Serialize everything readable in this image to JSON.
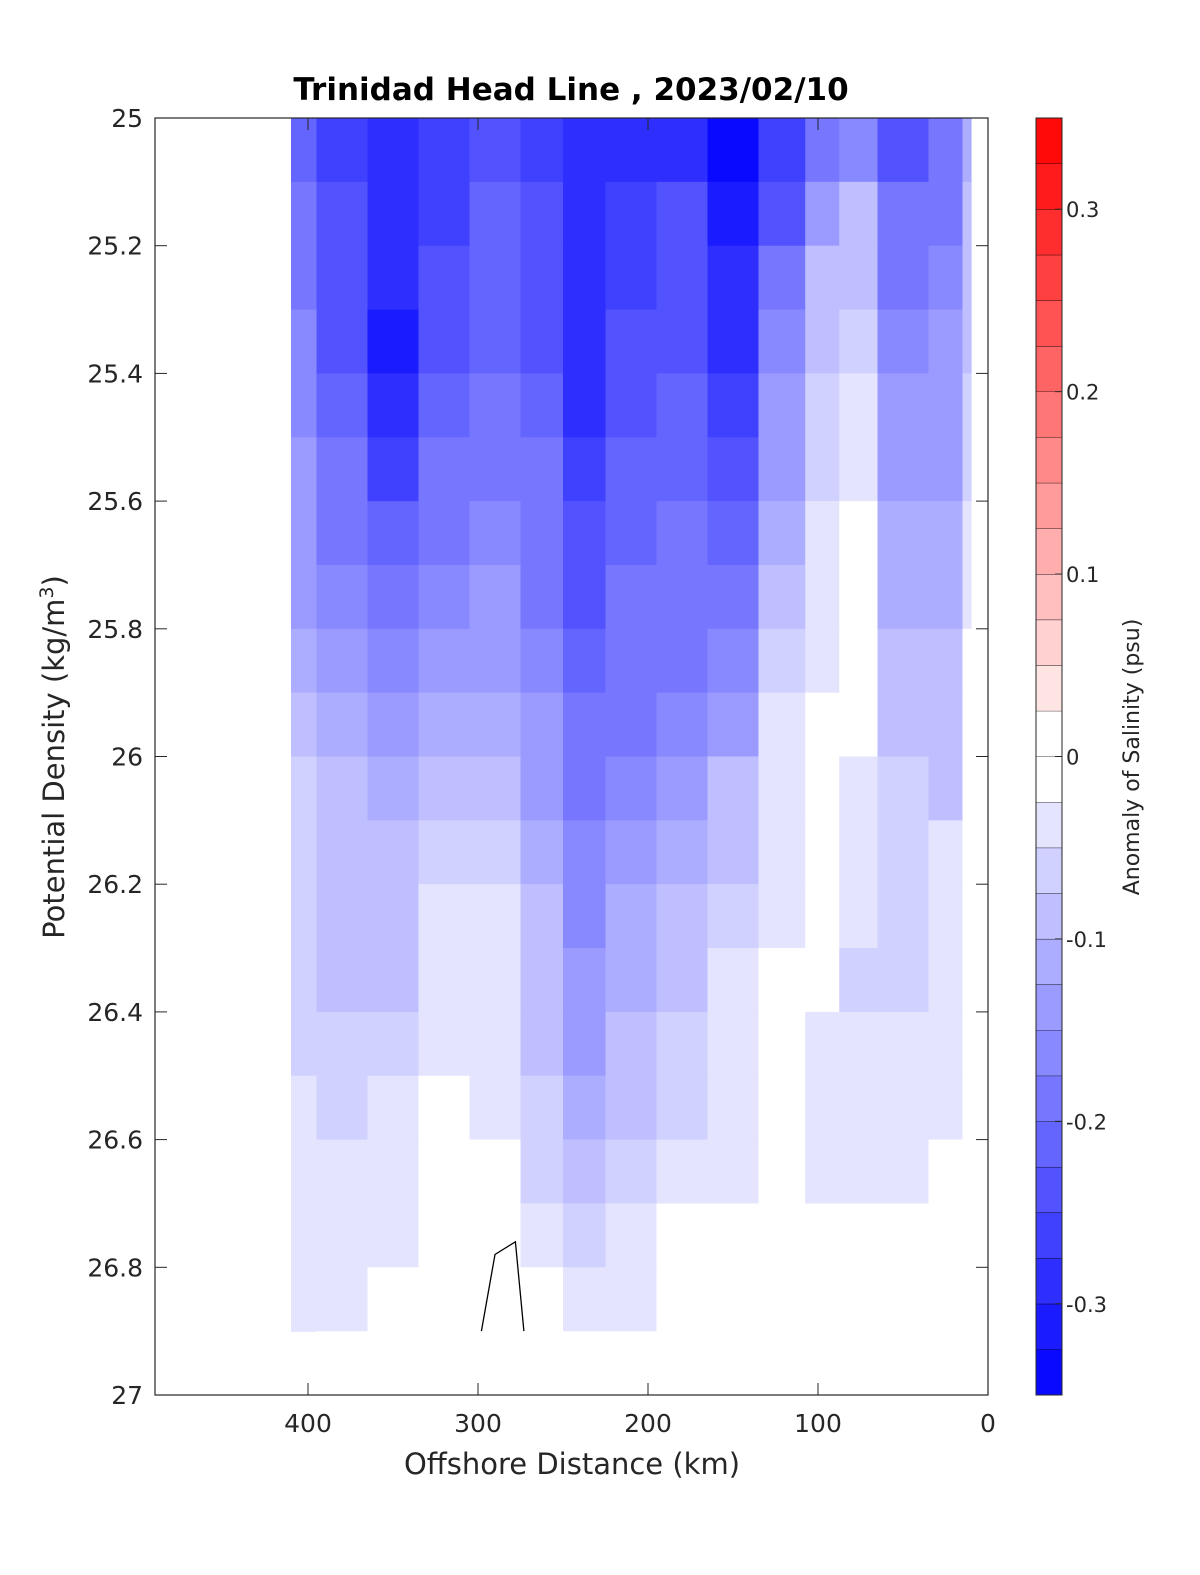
{
  "chart_data": {
    "type": "heatmap",
    "title": "Trinidad Head Line , 2023/02/10",
    "xlabel": "Offshore Distance (km)",
    "ylabel_main": "Potential Density (kg/m",
    "ylabel_sup": "3",
    "ylabel_close": ")",
    "xlim": [
      490,
      0
    ],
    "ylim": [
      25,
      27
    ],
    "x_reversed": true,
    "y_reversed": true,
    "xticks": [
      400,
      300,
      200,
      100,
      0
    ],
    "xtick_labels": [
      "400",
      "300",
      "200",
      "100",
      "0"
    ],
    "yticks": [
      25,
      25.2,
      25.4,
      25.6,
      25.8,
      26,
      26.2,
      26.4,
      26.6,
      26.8,
      27
    ],
    "ytick_labels": [
      "25",
      "25.2",
      "25.4",
      "25.6",
      "25.8",
      "26",
      "26.2",
      "26.4",
      "26.6",
      "26.8",
      "27"
    ],
    "colorbar": {
      "label": "Anomaly of Salinity (psu)",
      "range": [
        -0.35,
        0.35
      ],
      "levels": [
        -0.35,
        -0.325,
        -0.3,
        -0.275,
        -0.25,
        -0.225,
        -0.2,
        -0.175,
        -0.15,
        -0.125,
        -0.1,
        -0.075,
        -0.05,
        -0.025,
        0,
        0.025,
        0.05,
        0.075,
        0.1,
        0.125,
        0.15,
        0.175,
        0.2,
        0.225,
        0.25,
        0.275,
        0.3,
        0.325,
        0.35
      ],
      "ticks": [
        0.3,
        0.2,
        0.1,
        0,
        -0.1,
        -0.2,
        -0.3
      ],
      "tick_labels": [
        "0.3",
        "0.2",
        "0.1",
        "0",
        "-0.1",
        "-0.2",
        "-0.3"
      ],
      "negative_color": "#0000ff",
      "positive_color": "#ff0000",
      "zero_color": "#ffffff"
    },
    "x": [
      410,
      380,
      350,
      320,
      290,
      260,
      240,
      210,
      180,
      150,
      120,
      95,
      80,
      50,
      20,
      10
    ],
    "y": [
      25.0,
      25.1,
      25.2,
      25.3,
      25.4,
      25.5,
      25.6,
      25.7,
      25.8,
      25.9,
      26.0,
      26.1,
      26.2,
      26.3,
      26.4,
      26.5,
      26.6,
      26.7,
      26.8,
      26.9
    ],
    "z": [
      [
        -0.22,
        -0.26,
        -0.28,
        -0.26,
        -0.23,
        -0.26,
        -0.28,
        -0.28,
        -0.28,
        -0.33,
        -0.27,
        -0.18,
        -0.16,
        -0.24,
        -0.2,
        -0.12
      ],
      [
        -0.2,
        -0.25,
        -0.29,
        -0.26,
        -0.22,
        -0.25,
        -0.29,
        -0.27,
        -0.25,
        -0.32,
        -0.23,
        -0.13,
        -0.1,
        -0.2,
        -0.18,
        -0.1
      ],
      [
        -0.18,
        -0.24,
        -0.3,
        -0.25,
        -0.21,
        -0.24,
        -0.3,
        -0.26,
        -0.24,
        -0.3,
        -0.2,
        -0.1,
        -0.08,
        -0.18,
        -0.16,
        -0.09
      ],
      [
        -0.17,
        -0.23,
        -0.31,
        -0.24,
        -0.21,
        -0.23,
        -0.3,
        -0.25,
        -0.23,
        -0.28,
        -0.17,
        -0.08,
        -0.06,
        -0.16,
        -0.15,
        -0.08
      ],
      [
        -0.16,
        -0.22,
        -0.3,
        -0.22,
        -0.2,
        -0.21,
        -0.29,
        -0.24,
        -0.22,
        -0.26,
        -0.15,
        -0.07,
        -0.04,
        -0.15,
        -0.14,
        -0.07
      ],
      [
        -0.15,
        -0.2,
        -0.26,
        -0.2,
        -0.19,
        -0.2,
        -0.27,
        -0.22,
        -0.21,
        -0.24,
        -0.13,
        -0.06,
        -0.03,
        -0.13,
        -0.13,
        -0.06
      ],
      [
        -0.14,
        -0.18,
        -0.22,
        -0.18,
        -0.17,
        -0.19,
        -0.25,
        -0.21,
        -0.2,
        -0.22,
        -0.11,
        -0.05,
        -0.02,
        -0.12,
        -0.12,
        -0.05
      ],
      [
        -0.13,
        -0.16,
        -0.19,
        -0.16,
        -0.15,
        -0.18,
        -0.23,
        -0.2,
        -0.19,
        -0.19,
        -0.09,
        -0.04,
        -0.02,
        -0.11,
        -0.11,
        -0.03
      ],
      [
        -0.11,
        -0.14,
        -0.17,
        -0.14,
        -0.13,
        -0.17,
        -0.21,
        -0.19,
        -0.18,
        -0.16,
        -0.07,
        -0.03,
        -0.02,
        -0.1,
        -0.1,
        -0.02
      ],
      [
        -0.09,
        -0.12,
        -0.15,
        -0.12,
        -0.11,
        -0.15,
        -0.19,
        -0.18,
        -0.16,
        -0.13,
        -0.05,
        -0.02,
        -0.02,
        -0.08,
        -0.09,
        -0.02
      ],
      [
        -0.07,
        -0.1,
        -0.12,
        -0.09,
        -0.09,
        -0.13,
        -0.18,
        -0.16,
        -0.14,
        -0.1,
        -0.04,
        0.0,
        -0.03,
        -0.07,
        -0.08,
        -0.02
      ],
      [
        -0.06,
        -0.09,
        -0.1,
        -0.07,
        -0.07,
        -0.11,
        -0.17,
        -0.14,
        -0.12,
        -0.08,
        -0.03,
        0.0,
        -0.04,
        -0.06,
        -0.05,
        -0.02
      ],
      [
        -0.06,
        -0.08,
        -0.09,
        -0.05,
        -0.05,
        -0.1,
        -0.16,
        -0.12,
        -0.1,
        -0.06,
        -0.03,
        -0.01,
        -0.05,
        -0.06,
        -0.03,
        -0.02
      ],
      [
        -0.06,
        -0.08,
        -0.08,
        -0.05,
        -0.05,
        -0.09,
        -0.15,
        -0.11,
        -0.08,
        -0.05,
        -0.02,
        -0.02,
        -0.06,
        -0.06,
        -0.03,
        -0.02
      ],
      [
        -0.06,
        -0.07,
        -0.07,
        -0.04,
        -0.04,
        -0.08,
        -0.14,
        -0.1,
        -0.07,
        -0.04,
        -0.02,
        -0.03,
        -0.05,
        -0.05,
        -0.03,
        -0.02
      ],
      [
        -0.05,
        -0.06,
        -0.05,
        -0.02,
        -0.03,
        -0.07,
        -0.12,
        -0.09,
        -0.06,
        -0.04,
        -0.02,
        -0.03,
        -0.04,
        -0.04,
        -0.03,
        -0.02
      ],
      [
        -0.05,
        -0.05,
        -0.04,
        -0.01,
        -0.01,
        -0.06,
        -0.1,
        -0.07,
        -0.04,
        -0.03,
        -0.02,
        -0.03,
        -0.04,
        -0.03,
        -0.02,
        -0.01
      ],
      [
        -0.04,
        -0.04,
        -0.03,
        -0.01,
        -0.01,
        -0.04,
        -0.07,
        -0.05,
        -0.02,
        -0.02,
        -0.01,
        -0.02,
        -0.02,
        -0.02,
        -0.01,
        -0.01
      ],
      [
        -0.03,
        -0.03,
        -0.02,
        0.0,
        0.01,
        -0.02,
        -0.04,
        -0.03,
        -0.01,
        -0.01,
        0.0,
        -0.01,
        -0.01,
        -0.01,
        -0.01,
        0.0
      ],
      [
        -0.03,
        -0.02,
        -0.01,
        0.0,
        0.02,
        -0.01,
        -0.02,
        -0.01,
        0.0,
        0.0,
        0.0,
        0.0,
        0.0,
        0.0,
        0.0,
        0.0
      ]
    ],
    "contour_line": {
      "x": [
        298,
        290,
        278,
        273
      ],
      "y": [
        26.9,
        26.78,
        26.76,
        26.9
      ]
    },
    "grid": false
  }
}
